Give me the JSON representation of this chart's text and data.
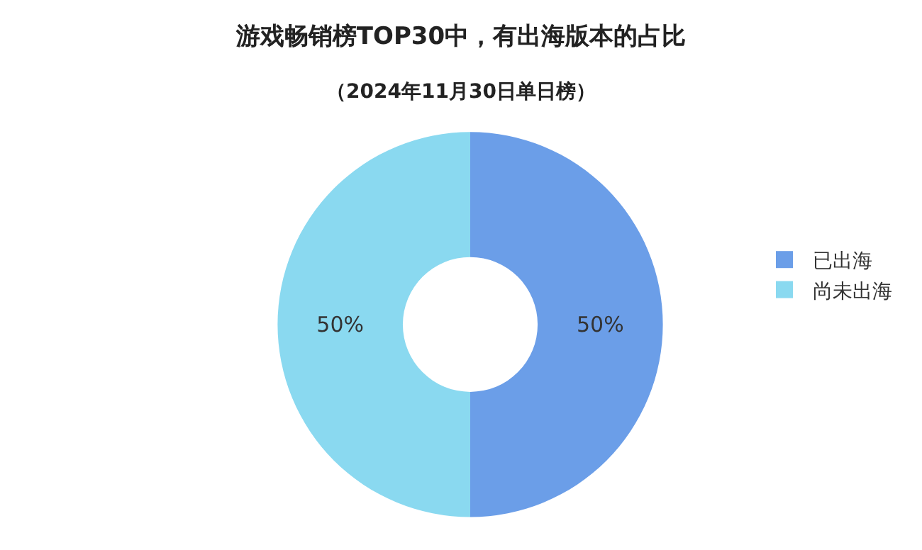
{
  "chart_data": {
    "type": "donut",
    "title": "游戏畅销榜TOP30中，有出海版本的占比",
    "subtitle": "（2024年11月30日单日榜）",
    "categories": [
      "已出海",
      "尚未出海"
    ],
    "values": [
      50,
      50
    ],
    "colors": [
      "#6b9ee8",
      "#8ad9f0"
    ],
    "value_labels": [
      "50%",
      "50%"
    ],
    "legend": "right"
  }
}
